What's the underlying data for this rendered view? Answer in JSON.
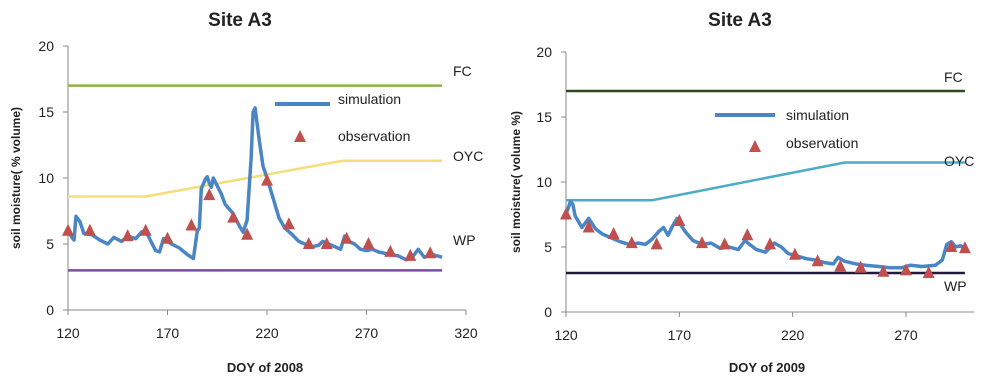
{
  "chart_data": [
    {
      "type": "line",
      "title": "Site A3",
      "xlabel": "DOY of 2008",
      "ylabel": "soil moisture( % volume)",
      "xlim": [
        120,
        320
      ],
      "ylim": [
        0,
        20
      ],
      "xticks": [
        "120",
        "170",
        "220",
        "270",
        "320"
      ],
      "yticks": [
        "0",
        "5",
        "10",
        "15",
        "20"
      ],
      "grid": false,
      "legend_position": "top-right",
      "reference_lines": [
        {
          "label": "FC",
          "color": "#8db23f",
          "points": [
            [
              120,
              17.0
            ],
            [
              308,
              17.0
            ]
          ]
        },
        {
          "label": "OYC",
          "color": "#f5dd7a",
          "points": [
            [
              120,
              8.6
            ],
            [
              159,
              8.6
            ],
            [
              258,
              11.3
            ],
            [
              308,
              11.3
            ]
          ]
        },
        {
          "label": "WP",
          "color": "#7a4ea0",
          "points": [
            [
              120,
              3.0
            ],
            [
              308,
              3.0
            ]
          ]
        }
      ],
      "series": [
        {
          "name": "simulation",
          "kind": "line",
          "color": "#4a86c5",
          "points": [
            [
              120,
              6.0
            ],
            [
              122,
              5.5
            ],
            [
              123,
              5.3
            ],
            [
              124,
              7.1
            ],
            [
              126,
              6.7
            ],
            [
              128,
              5.8
            ],
            [
              132,
              5.7
            ],
            [
              136,
              5.3
            ],
            [
              140,
              5.0
            ],
            [
              143,
              5.5
            ],
            [
              147,
              5.2
            ],
            [
              150,
              5.6
            ],
            [
              154,
              5.4
            ],
            [
              157,
              5.9
            ],
            [
              159,
              6.0
            ],
            [
              161,
              5.4
            ],
            [
              164,
              4.5
            ],
            [
              166,
              4.4
            ],
            [
              168,
              5.4
            ],
            [
              172,
              5.0
            ],
            [
              176,
              4.7
            ],
            [
              180,
              4.2
            ],
            [
              183,
              3.9
            ],
            [
              185,
              6.0
            ],
            [
              186,
              6.2
            ],
            [
              187,
              9.2
            ],
            [
              189,
              9.9
            ],
            [
              190,
              10.1
            ],
            [
              191,
              9.6
            ],
            [
              192,
              9.3
            ],
            [
              193,
              10.0
            ],
            [
              195,
              9.4
            ],
            [
              197,
              8.8
            ],
            [
              199,
              8.0
            ],
            [
              203,
              7.3
            ],
            [
              206,
              6.4
            ],
            [
              208,
              5.9
            ],
            [
              210,
              6.8
            ],
            [
              212,
              11.5
            ],
            [
              213,
              15.0
            ],
            [
              214,
              15.3
            ],
            [
              216,
              13.0
            ],
            [
              218,
              10.9
            ],
            [
              220,
              10.0
            ],
            [
              223,
              8.5
            ],
            [
              226,
              7.0
            ],
            [
              229,
              6.2
            ],
            [
              232,
              5.8
            ],
            [
              234,
              5.5
            ],
            [
              236,
              5.2
            ],
            [
              239,
              5.0
            ],
            [
              243,
              4.8
            ],
            [
              246,
              4.9
            ],
            [
              248,
              5.2
            ],
            [
              251,
              5.0
            ],
            [
              254,
              4.8
            ],
            [
              257,
              4.6
            ],
            [
              259,
              5.6
            ],
            [
              261,
              5.2
            ],
            [
              264,
              5.0
            ],
            [
              267,
              4.6
            ],
            [
              270,
              4.5
            ],
            [
              273,
              4.6
            ],
            [
              276,
              4.4
            ],
            [
              279,
              4.3
            ],
            [
              282,
              4.2
            ],
            [
              286,
              4.1
            ],
            [
              290,
              3.8
            ],
            [
              293,
              4.0
            ],
            [
              296,
              4.6
            ],
            [
              299,
              4.0
            ],
            [
              303,
              4.2
            ],
            [
              308,
              4.0
            ]
          ]
        },
        {
          "name": "observation",
          "kind": "marker",
          "color": "#c0504d",
          "points": [
            [
              120,
              6.0
            ],
            [
              131,
              6.0
            ],
            [
              150,
              5.6
            ],
            [
              159,
              6.0
            ],
            [
              170,
              5.4
            ],
            [
              182,
              6.4
            ],
            [
              191,
              8.7
            ],
            [
              203,
              7.0
            ],
            [
              210,
              5.7
            ],
            [
              220,
              9.8
            ],
            [
              231,
              6.5
            ],
            [
              241,
              5.0
            ],
            [
              250,
              5.0
            ],
            [
              260,
              5.4
            ],
            [
              271,
              5.0
            ],
            [
              282,
              4.4
            ],
            [
              292,
              4.1
            ],
            [
              302,
              4.3
            ]
          ]
        }
      ],
      "right_labels": [
        "FC",
        "OYC",
        "WP"
      ]
    },
    {
      "type": "line",
      "title": "Site A3",
      "xlabel": "DOY of 2009",
      "ylabel": "soil moisture( volume %)",
      "xlim": [
        120,
        300
      ],
      "ylim": [
        0,
        20
      ],
      "xticks": [
        "120",
        "170",
        "220",
        "270"
      ],
      "yticks": [
        "0",
        "5",
        "10",
        "15",
        "20"
      ],
      "grid": false,
      "legend_position": "top-right",
      "reference_lines": [
        {
          "label": "FC",
          "color": "#2e4a1e",
          "points": [
            [
              120,
              17.0
            ],
            [
              296,
              17.0
            ]
          ]
        },
        {
          "label": "OYC",
          "color": "#4bacc6",
          "points": [
            [
              120,
              8.6
            ],
            [
              158,
              8.6
            ],
            [
              243,
              11.5
            ],
            [
              296,
              11.5
            ]
          ]
        },
        {
          "label": "WP",
          "color": "#221a3a",
          "points": [
            [
              120,
              3.0
            ],
            [
              296,
              3.0
            ]
          ]
        }
      ],
      "series": [
        {
          "name": "simulation",
          "kind": "line",
          "color": "#4a86c5",
          "points": [
            [
              120,
              7.5
            ],
            [
              122,
              8.5
            ],
            [
              123,
              8.3
            ],
            [
              124,
              7.4
            ],
            [
              127,
              6.5
            ],
            [
              130,
              7.2
            ],
            [
              133,
              6.4
            ],
            [
              136,
              6.0
            ],
            [
              140,
              5.7
            ],
            [
              144,
              5.4
            ],
            [
              148,
              5.2
            ],
            [
              152,
              5.3
            ],
            [
              155,
              5.2
            ],
            [
              158,
              5.6
            ],
            [
              161,
              6.2
            ],
            [
              163,
              6.5
            ],
            [
              165,
              5.9
            ],
            [
              167,
              6.6
            ],
            [
              169,
              7.2
            ],
            [
              171,
              6.6
            ],
            [
              173,
              6.1
            ],
            [
              176,
              5.5
            ],
            [
              180,
              5.2
            ],
            [
              184,
              5.3
            ],
            [
              188,
              4.9
            ],
            [
              192,
              5.0
            ],
            [
              196,
              4.8
            ],
            [
              199,
              5.5
            ],
            [
              201,
              5.2
            ],
            [
              204,
              4.8
            ],
            [
              208,
              4.6
            ],
            [
              212,
              5.3
            ],
            [
              215,
              5.0
            ],
            [
              218,
              4.5
            ],
            [
              222,
              4.3
            ],
            [
              226,
              4.1
            ],
            [
              230,
              4.0
            ],
            [
              234,
              3.8
            ],
            [
              238,
              3.7
            ],
            [
              240,
              4.2
            ],
            [
              243,
              3.9
            ],
            [
              248,
              3.7
            ],
            [
              252,
              3.6
            ],
            [
              258,
              3.5
            ],
            [
              263,
              3.4
            ],
            [
              268,
              3.4
            ],
            [
              272,
              3.6
            ],
            [
              277,
              3.5
            ],
            [
              283,
              3.6
            ],
            [
              286,
              4.0
            ],
            [
              288,
              5.2
            ],
            [
              290,
              5.4
            ],
            [
              292,
              5.0
            ],
            [
              294,
              5.1
            ],
            [
              296,
              4.9
            ]
          ]
        },
        {
          "name": "observation",
          "kind": "marker",
          "color": "#c0504d",
          "points": [
            [
              120,
              7.5
            ],
            [
              130,
              6.5
            ],
            [
              141,
              6.0
            ],
            [
              149,
              5.3
            ],
            [
              160,
              5.2
            ],
            [
              170,
              7.0
            ],
            [
              180,
              5.3
            ],
            [
              190,
              5.2
            ],
            [
              200,
              5.9
            ],
            [
              210,
              5.2
            ],
            [
              221,
              4.4
            ],
            [
              231,
              3.9
            ],
            [
              241,
              3.5
            ],
            [
              250,
              3.4
            ],
            [
              260,
              3.1
            ],
            [
              270,
              3.2
            ],
            [
              280,
              3.0
            ],
            [
              290,
              5.0
            ],
            [
              296,
              4.9
            ]
          ]
        }
      ],
      "right_labels": [
        "FC",
        "OYC",
        "WP"
      ]
    }
  ]
}
